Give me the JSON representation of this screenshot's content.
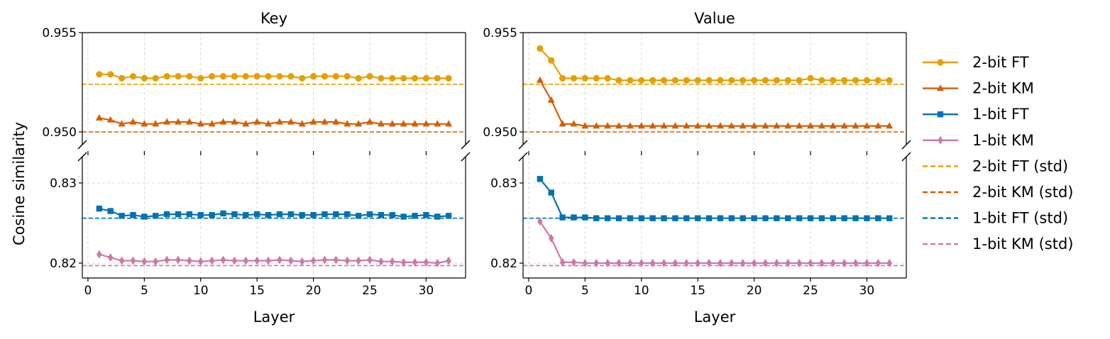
{
  "figure": {
    "ylabel": "Cosine similarity",
    "xlabel": "Layer"
  },
  "legend": {
    "entries": [
      {
        "label": "2-bit FT",
        "color": "#E69F00",
        "style": "solid",
        "marker": "circle"
      },
      {
        "label": "2-bit KM",
        "color": "#D55E00",
        "style": "solid",
        "marker": "triangle"
      },
      {
        "label": "1-bit FT",
        "color": "#0072B2",
        "style": "solid",
        "marker": "square"
      },
      {
        "label": "1-bit KM",
        "color": "#CC79A7",
        "style": "solid",
        "marker": "diamond"
      },
      {
        "label": "2-bit FT (std)",
        "color": "#E69F00",
        "style": "dashed",
        "marker": "none"
      },
      {
        "label": "2-bit KM (std)",
        "color": "#D55E00",
        "style": "dashed",
        "marker": "none"
      },
      {
        "label": "1-bit FT (std)",
        "color": "#0072B2",
        "style": "dashed",
        "marker": "none"
      },
      {
        "label": "1-bit KM (std)",
        "color": "#CC79A7",
        "style": "dashed",
        "marker": "none"
      }
    ],
    "placement": "right, outside"
  },
  "chart_data": [
    {
      "type": "line",
      "title": "Key",
      "xlabel": "Layer",
      "ylabel": "Cosine similarity",
      "x": [
        1,
        2,
        3,
        4,
        5,
        6,
        7,
        8,
        9,
        10,
        11,
        12,
        13,
        14,
        15,
        16,
        17,
        18,
        19,
        20,
        21,
        22,
        23,
        24,
        25,
        26,
        27,
        28,
        29,
        30,
        31,
        32
      ],
      "xlim": [
        -0.5,
        33.5
      ],
      "xticks": [
        0,
        5,
        10,
        15,
        20,
        25,
        30
      ],
      "broken_y_axis": true,
      "ylim_upper": [
        0.95,
        0.955
      ],
      "yticks_upper": [
        "0.950",
        "0.955"
      ],
      "ylim_lower": [
        0.8188,
        0.8335
      ],
      "yticks_lower": [
        "0.82",
        "0.83"
      ],
      "grid": true,
      "series": [
        {
          "name": "2-bit FT",
          "color": "#E69F00",
          "marker": "circle",
          "values": [
            0.9529,
            0.9529,
            0.9527,
            0.9528,
            0.9527,
            0.9527,
            0.9528,
            0.9528,
            0.9528,
            0.9527,
            0.9528,
            0.9528,
            0.9528,
            0.9528,
            0.9528,
            0.9528,
            0.9528,
            0.9528,
            0.9527,
            0.9528,
            0.9528,
            0.9528,
            0.9528,
            0.9527,
            0.9528,
            0.9527,
            0.9527,
            0.9527,
            0.9527,
            0.9527,
            0.9527,
            0.9527
          ]
        },
        {
          "name": "2-bit KM",
          "color": "#D55E00",
          "marker": "triangle",
          "values": [
            0.9507,
            0.9506,
            0.9504,
            0.9505,
            0.9504,
            0.9504,
            0.9505,
            0.9505,
            0.9505,
            0.9504,
            0.9504,
            0.9505,
            0.9505,
            0.9504,
            0.9505,
            0.9504,
            0.9505,
            0.9505,
            0.9504,
            0.9505,
            0.9505,
            0.9505,
            0.9504,
            0.9504,
            0.9505,
            0.9504,
            0.9504,
            0.9504,
            0.9504,
            0.9504,
            0.9504,
            0.9504
          ]
        },
        {
          "name": "1-bit FT",
          "color": "#0072B2",
          "marker": "square",
          "values": [
            0.8268,
            0.8265,
            0.8259,
            0.826,
            0.8258,
            0.8259,
            0.8261,
            0.8261,
            0.8261,
            0.826,
            0.826,
            0.8262,
            0.8261,
            0.826,
            0.8261,
            0.826,
            0.8261,
            0.8261,
            0.826,
            0.826,
            0.8261,
            0.8261,
            0.8261,
            0.8259,
            0.8261,
            0.826,
            0.826,
            0.8258,
            0.8259,
            0.826,
            0.8258,
            0.8259
          ]
        },
        {
          "name": "1-bit KM",
          "color": "#CC79A7",
          "marker": "diamond",
          "values": [
            0.8211,
            0.8207,
            0.8203,
            0.8203,
            0.8202,
            0.8202,
            0.8204,
            0.8204,
            0.8203,
            0.8202,
            0.8203,
            0.8204,
            0.8203,
            0.8203,
            0.8203,
            0.8203,
            0.8204,
            0.8203,
            0.8202,
            0.8203,
            0.8204,
            0.8204,
            0.8203,
            0.8203,
            0.8204,
            0.8202,
            0.8202,
            0.8201,
            0.8201,
            0.8201,
            0.82,
            0.8203
          ]
        }
      ],
      "reference_lines": [
        {
          "name": "2-bit FT (std)",
          "color": "#E69F00",
          "y": 0.9524
        },
        {
          "name": "2-bit KM (std)",
          "color": "#D55E00",
          "y": 0.95
        },
        {
          "name": "1-bit FT (std)",
          "color": "#0072B2",
          "y": 0.8256
        },
        {
          "name": "1-bit KM (std)",
          "color": "#CC79A7",
          "y": 0.8197
        }
      ]
    },
    {
      "type": "line",
      "title": "Value",
      "xlabel": "Layer",
      "ylabel": "",
      "x": [
        1,
        2,
        3,
        4,
        5,
        6,
        7,
        8,
        9,
        10,
        11,
        12,
        13,
        14,
        15,
        16,
        17,
        18,
        19,
        20,
        21,
        22,
        23,
        24,
        25,
        26,
        27,
        28,
        29,
        30,
        31,
        32
      ],
      "xlim": [
        -0.5,
        33.5
      ],
      "xticks": [
        0,
        5,
        10,
        15,
        20,
        25,
        30
      ],
      "broken_y_axis": true,
      "ylim_upper": [
        0.95,
        0.955
      ],
      "yticks_upper": [
        "0.950",
        "0.955"
      ],
      "ylim_lower": [
        0.8188,
        0.8335
      ],
      "yticks_lower": [
        "0.82",
        "0.83"
      ],
      "grid": true,
      "series": [
        {
          "name": "2-bit FT",
          "color": "#E69F00",
          "marker": "circle",
          "values": [
            0.9542,
            0.9536,
            0.9527,
            0.9527,
            0.9527,
            0.9527,
            0.9527,
            0.9526,
            0.9526,
            0.9526,
            0.9526,
            0.9526,
            0.9526,
            0.9526,
            0.9526,
            0.9526,
            0.9526,
            0.9526,
            0.9526,
            0.9526,
            0.9526,
            0.9526,
            0.9526,
            0.9526,
            0.9527,
            0.9526,
            0.9526,
            0.9526,
            0.9526,
            0.9526,
            0.9526,
            0.9526
          ]
        },
        {
          "name": "2-bit KM",
          "color": "#D55E00",
          "marker": "triangle",
          "values": [
            0.9526,
            0.9516,
            0.9504,
            0.9504,
            0.9503,
            0.9503,
            0.9503,
            0.9503,
            0.9503,
            0.9503,
            0.9503,
            0.9503,
            0.9503,
            0.9503,
            0.9503,
            0.9503,
            0.9503,
            0.9503,
            0.9503,
            0.9503,
            0.9503,
            0.9503,
            0.9503,
            0.9503,
            0.9503,
            0.9503,
            0.9503,
            0.9503,
            0.9503,
            0.9503,
            0.9503,
            0.9503
          ]
        },
        {
          "name": "1-bit FT",
          "color": "#0072B2",
          "marker": "square",
          "values": [
            0.8305,
            0.8288,
            0.8257,
            0.8257,
            0.8257,
            0.8256,
            0.8256,
            0.8256,
            0.8256,
            0.8256,
            0.8256,
            0.8256,
            0.8256,
            0.8256,
            0.8256,
            0.8256,
            0.8256,
            0.8256,
            0.8256,
            0.8256,
            0.8256,
            0.8256,
            0.8256,
            0.8256,
            0.8256,
            0.8256,
            0.8256,
            0.8256,
            0.8256,
            0.8256,
            0.8256,
            0.8256
          ]
        },
        {
          "name": "1-bit KM",
          "color": "#CC79A7",
          "marker": "diamond",
          "values": [
            0.8252,
            0.8231,
            0.8201,
            0.8201,
            0.82,
            0.82,
            0.82,
            0.82,
            0.82,
            0.82,
            0.82,
            0.82,
            0.82,
            0.82,
            0.82,
            0.82,
            0.82,
            0.82,
            0.82,
            0.82,
            0.82,
            0.82,
            0.82,
            0.82,
            0.82,
            0.82,
            0.82,
            0.82,
            0.82,
            0.82,
            0.82,
            0.82
          ]
        }
      ],
      "reference_lines": [
        {
          "name": "2-bit FT (std)",
          "color": "#E69F00",
          "y": 0.9524
        },
        {
          "name": "2-bit KM (std)",
          "color": "#D55E00",
          "y": 0.95
        },
        {
          "name": "1-bit FT (std)",
          "color": "#0072B2",
          "y": 0.8256
        },
        {
          "name": "1-bit KM (std)",
          "color": "#CC79A7",
          "y": 0.8197
        }
      ]
    }
  ]
}
